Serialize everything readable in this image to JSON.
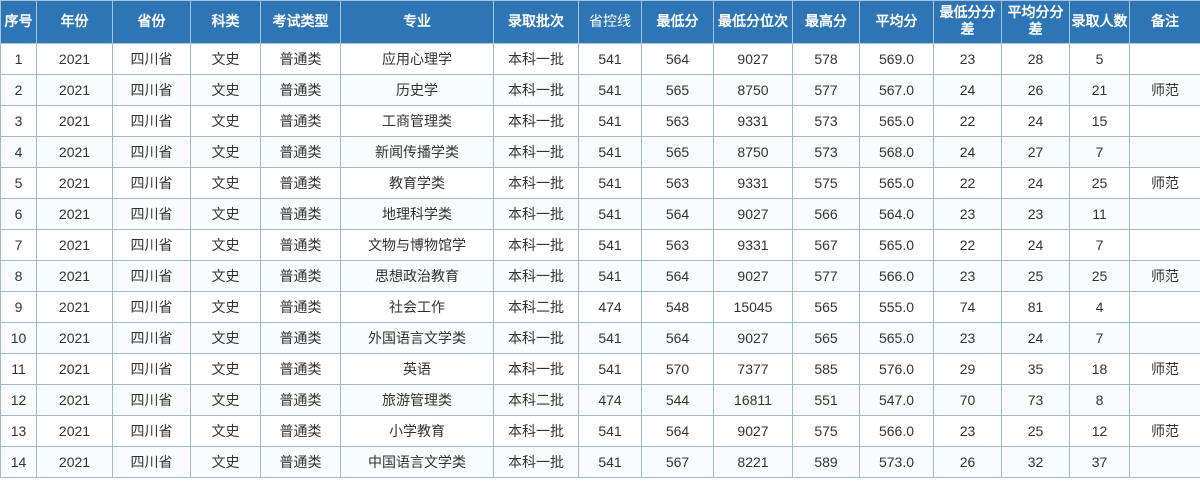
{
  "headers": [
    "序号",
    "年份",
    "省份",
    "科类",
    "考试类型",
    "专业",
    "录取批次",
    "省控线",
    "最低分",
    "最低分位次",
    "最高分",
    "平均分",
    "最低分分差",
    "平均分分差",
    "录取人数",
    "备注"
  ],
  "rows": [
    [
      "1",
      "2021",
      "四川省",
      "文史",
      "普通类",
      "应用心理学",
      "本科一批",
      "541",
      "564",
      "9027",
      "578",
      "569.0",
      "23",
      "28",
      "5",
      ""
    ],
    [
      "2",
      "2021",
      "四川省",
      "文史",
      "普通类",
      "历史学",
      "本科一批",
      "541",
      "565",
      "8750",
      "577",
      "567.0",
      "24",
      "26",
      "21",
      "师范"
    ],
    [
      "3",
      "2021",
      "四川省",
      "文史",
      "普通类",
      "工商管理类",
      "本科一批",
      "541",
      "563",
      "9331",
      "573",
      "565.0",
      "22",
      "24",
      "15",
      ""
    ],
    [
      "4",
      "2021",
      "四川省",
      "文史",
      "普通类",
      "新闻传播学类",
      "本科一批",
      "541",
      "565",
      "8750",
      "573",
      "568.0",
      "24",
      "27",
      "7",
      ""
    ],
    [
      "5",
      "2021",
      "四川省",
      "文史",
      "普通类",
      "教育学类",
      "本科一批",
      "541",
      "563",
      "9331",
      "575",
      "565.0",
      "22",
      "24",
      "25",
      "师范"
    ],
    [
      "6",
      "2021",
      "四川省",
      "文史",
      "普通类",
      "地理科学类",
      "本科一批",
      "541",
      "564",
      "9027",
      "566",
      "564.0",
      "23",
      "23",
      "11",
      ""
    ],
    [
      "7",
      "2021",
      "四川省",
      "文史",
      "普通类",
      "文物与博物馆学",
      "本科一批",
      "541",
      "563",
      "9331",
      "567",
      "565.0",
      "22",
      "24",
      "7",
      ""
    ],
    [
      "8",
      "2021",
      "四川省",
      "文史",
      "普通类",
      "思想政治教育",
      "本科一批",
      "541",
      "564",
      "9027",
      "577",
      "566.0",
      "23",
      "25",
      "25",
      "师范"
    ],
    [
      "9",
      "2021",
      "四川省",
      "文史",
      "普通类",
      "社会工作",
      "本科二批",
      "474",
      "548",
      "15045",
      "565",
      "555.0",
      "74",
      "81",
      "4",
      ""
    ],
    [
      "10",
      "2021",
      "四川省",
      "文史",
      "普通类",
      "外国语言文学类",
      "本科一批",
      "541",
      "564",
      "9027",
      "565",
      "565.0",
      "23",
      "24",
      "7",
      ""
    ],
    [
      "11",
      "2021",
      "四川省",
      "文史",
      "普通类",
      "英语",
      "本科一批",
      "541",
      "570",
      "7377",
      "585",
      "576.0",
      "29",
      "35",
      "18",
      "师范"
    ],
    [
      "12",
      "2021",
      "四川省",
      "文史",
      "普通类",
      "旅游管理类",
      "本科二批",
      "474",
      "544",
      "16811",
      "551",
      "547.0",
      "70",
      "73",
      "8",
      ""
    ],
    [
      "13",
      "2021",
      "四川省",
      "文史",
      "普通类",
      "小学教育",
      "本科一批",
      "541",
      "564",
      "9027",
      "575",
      "566.0",
      "23",
      "25",
      "12",
      "师范"
    ],
    [
      "14",
      "2021",
      "四川省",
      "文史",
      "普通类",
      "中国语言文学类",
      "本科一批",
      "541",
      "567",
      "8221",
      "589",
      "573.0",
      "26",
      "32",
      "37",
      ""
    ]
  ]
}
